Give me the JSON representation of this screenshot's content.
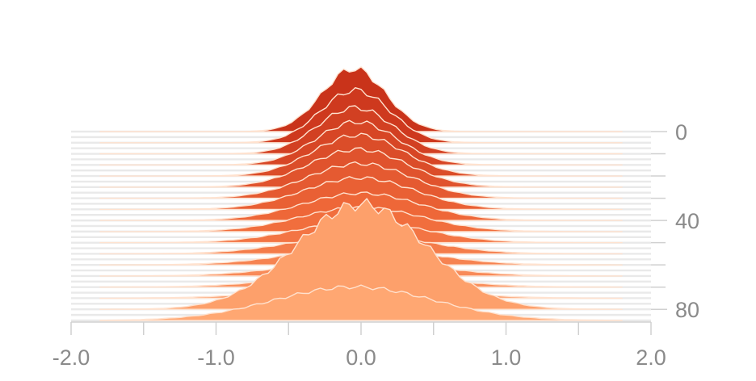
{
  "chart_data": {
    "type": "area",
    "description_kind": "stacked histogram distributions over steps",
    "x_axis": {
      "range": [
        -2.0,
        2.0
      ],
      "ticks": [
        -2.0,
        -1.5,
        -1.0,
        -0.5,
        0.0,
        0.5,
        1.0,
        1.5,
        2.0
      ],
      "tick_labels": [
        {
          "value": -2.0,
          "label": "-2.0"
        },
        {
          "value": -1.0,
          "label": "-1.0"
        },
        {
          "value": 0.0,
          "label": "0.0"
        },
        {
          "value": 1.0,
          "label": "1.0"
        },
        {
          "value": 2.0,
          "label": "2.0"
        }
      ]
    },
    "y_axis": {
      "range": [
        0,
        85
      ],
      "ticks": [
        0,
        10,
        20,
        30,
        40,
        50,
        60,
        70,
        80
      ],
      "tick_labels": [
        {
          "value": 0,
          "label": "0"
        },
        {
          "value": 40,
          "label": "40"
        },
        {
          "value": 80,
          "label": "80"
        }
      ]
    },
    "series": [
      {
        "step": 0,
        "center": -0.05,
        "spread": 0.22,
        "peak": 60
      },
      {
        "step": 5,
        "center": -0.04,
        "spread": 0.24,
        "peak": 50
      },
      {
        "step": 10,
        "center": -0.04,
        "spread": 0.26,
        "peak": 44
      },
      {
        "step": 15,
        "center": -0.03,
        "spread": 0.28,
        "peak": 41
      },
      {
        "step": 20,
        "center": -0.02,
        "spread": 0.31,
        "peak": 39
      },
      {
        "step": 25,
        "center": -0.02,
        "spread": 0.34,
        "peak": 36
      },
      {
        "step": 30,
        "center": -0.01,
        "spread": 0.36,
        "peak": 33
      },
      {
        "step": 35,
        "center": -0.01,
        "spread": 0.38,
        "peak": 30
      },
      {
        "step": 40,
        "center": 0.0,
        "spread": 0.4,
        "peak": 26
      },
      {
        "step": 45,
        "center": 0.0,
        "spread": 0.42,
        "peak": 23
      },
      {
        "step": 50,
        "center": 0.0,
        "spread": 0.44,
        "peak": 20
      },
      {
        "step": 55,
        "center": 0.0,
        "spread": 0.46,
        "peak": 18
      },
      {
        "step": 60,
        "center": 0.0,
        "spread": 0.48,
        "peak": 16
      },
      {
        "step": 65,
        "center": 0.0,
        "spread": 0.5,
        "peak": 14
      },
      {
        "step": 70,
        "center": 0.0,
        "spread": 0.52,
        "peak": 12
      },
      {
        "step": 75,
        "center": 0.0,
        "spread": 0.55,
        "peak": 10
      },
      {
        "step": 80,
        "center": 0.0,
        "spread": 0.45,
        "peak": 100
      },
      {
        "step": 85,
        "center": -0.05,
        "spread": 0.55,
        "peak": 32
      }
    ],
    "colors": {
      "early": "#c9331a",
      "mid": "#f06a3a",
      "late": "#ffa772",
      "outline": "#ffe2cf",
      "background_lines": "#e9e9e9",
      "axis": "#d0d0d0",
      "tick_text": "#8a8a8a"
    }
  }
}
